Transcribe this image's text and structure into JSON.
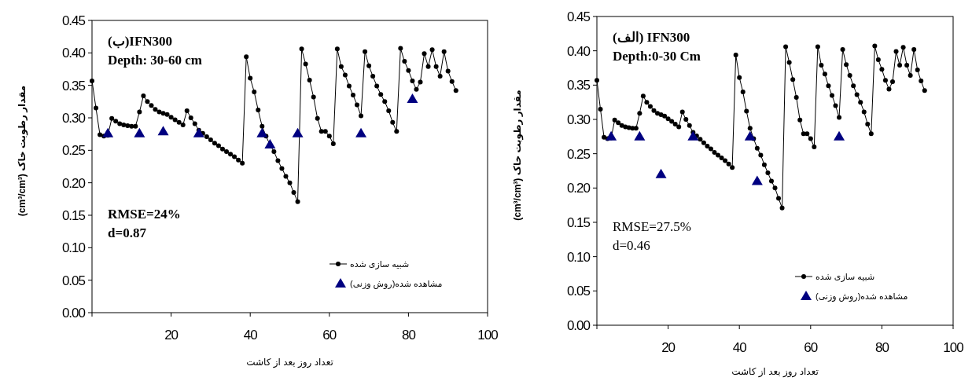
{
  "chart_data": [
    {
      "type": "line",
      "xlabel": "تعداد روز بعد از کاشت",
      "ylabel": "مقدار رطوبت خاک (cm³/cm³)",
      "annotations": [
        "(ب)IFN300",
        "Depth: 30-60 cm",
        "RMSE=24%",
        "d=0.87"
      ],
      "legend": "bottom right",
      "xlim": [
        0,
        100
      ],
      "xticks": [
        {
          "value": 0,
          "label": null
        },
        20,
        40,
        60,
        80,
        100
      ],
      "ylim": [
        0,
        0.45
      ],
      "yticks": [
        {
          "value": 0,
          "label": "0.00"
        },
        0.05,
        {
          "value": 0.1,
          "label": "0.10"
        },
        0.15,
        {
          "value": 0.2,
          "label": "0.20"
        },
        0.25,
        {
          "value": 0.3,
          "label": "0.30"
        },
        0.35,
        {
          "value": 0.4,
          "label": "0.40"
        },
        0.45
      ],
      "series": [
        {
          "name": "شبیه سازی شده",
          "type": "line",
          "marker": "circle",
          "color": "#000000",
          "x": [
            0,
            1,
            2,
            3,
            4,
            5,
            6,
            7,
            8,
            9,
            10,
            11,
            12,
            13,
            14,
            15,
            16,
            17,
            18,
            19,
            20,
            21,
            22,
            23,
            24,
            25,
            26,
            27,
            28,
            29,
            30,
            31,
            32,
            33,
            34,
            35,
            36,
            37,
            38,
            39,
            40,
            41,
            42,
            43,
            44,
            45,
            46,
            47,
            48,
            49,
            50,
            51,
            52,
            53,
            54,
            55,
            56,
            57,
            58,
            59,
            60,
            61,
            62,
            63,
            64,
            65,
            66,
            67,
            68,
            69,
            70,
            71,
            72,
            73,
            74,
            75,
            76,
            77,
            78,
            79,
            80,
            81,
            82,
            83,
            84,
            85,
            86,
            87,
            88,
            89,
            90,
            91,
            92
          ],
          "values": [
            0.357,
            0.315,
            0.274,
            0.272,
            0.273,
            0.299,
            0.295,
            0.291,
            0.289,
            0.288,
            0.287,
            0.287,
            0.309,
            0.334,
            0.325,
            0.319,
            0.313,
            0.309,
            0.307,
            0.305,
            0.301,
            0.297,
            0.293,
            0.289,
            0.311,
            0.3,
            0.291,
            0.281,
            0.276,
            0.271,
            0.266,
            0.261,
            0.257,
            0.252,
            0.248,
            0.244,
            0.24,
            0.235,
            0.23,
            0.394,
            0.361,
            0.34,
            0.312,
            0.287,
            0.272,
            0.258,
            0.248,
            0.234,
            0.222,
            0.21,
            0.2,
            0.185,
            0.171,
            0.406,
            0.383,
            0.358,
            0.332,
            0.299,
            0.279,
            0.279,
            0.272,
            0.26,
            0.406,
            0.379,
            0.366,
            0.349,
            0.335,
            0.32,
            0.303,
            0.402,
            0.38,
            0.364,
            0.349,
            0.336,
            0.325,
            0.311,
            0.293,
            0.279,
            0.407,
            0.387,
            0.373,
            0.357,
            0.344,
            0.355,
            0.399,
            0.379,
            0.405,
            0.379,
            0.364,
            0.402,
            0.372,
            0.356,
            0.342
          ]
        },
        {
          "name": "مشاهده شده(روش وزنی)",
          "type": "scatter",
          "marker": "triangle",
          "color": "#000080",
          "x": [
            4,
            12,
            18,
            27,
            43,
            45,
            52,
            68,
            81
          ],
          "values": [
            0.276,
            0.276,
            0.279,
            0.276,
            0.276,
            0.259,
            0.276,
            0.276,
            0.329
          ]
        }
      ]
    },
    {
      "type": "line",
      "xlabel": "تعداد روز بعد از کاشت",
      "ylabel": "مقدار رطوبت خاک (cm³/cm³)",
      "annotations": [
        "(الف) IFN300",
        "Depth:0-30 Cm",
        "RMSE=27.5%",
        "d=0.46"
      ],
      "legend": "bottom right",
      "xlim": [
        0,
        100
      ],
      "xticks": [
        {
          "value": 0,
          "label": null
        },
        20,
        40,
        60,
        80,
        100
      ],
      "ylim": [
        0,
        0.45
      ],
      "yticks": [
        {
          "value": 0,
          "label": "0.00"
        },
        0.05,
        {
          "value": 0.1,
          "label": "0.10"
        },
        0.15,
        {
          "value": 0.2,
          "label": "0.20"
        },
        0.25,
        {
          "value": 0.3,
          "label": "0.30"
        },
        0.35,
        {
          "value": 0.4,
          "label": "0.40"
        },
        0.45
      ],
      "series": [
        {
          "name": "شبیه سازی شده",
          "type": "line",
          "marker": "circle",
          "color": "#000000",
          "x": [
            0,
            1,
            2,
            3,
            4,
            5,
            6,
            7,
            8,
            9,
            10,
            11,
            12,
            13,
            14,
            15,
            16,
            17,
            18,
            19,
            20,
            21,
            22,
            23,
            24,
            25,
            26,
            27,
            28,
            29,
            30,
            31,
            32,
            33,
            34,
            35,
            36,
            37,
            38,
            39,
            40,
            41,
            42,
            43,
            44,
            45,
            46,
            47,
            48,
            49,
            50,
            51,
            52,
            53,
            54,
            55,
            56,
            57,
            58,
            59,
            60,
            61,
            62,
            63,
            64,
            65,
            66,
            67,
            68,
            69,
            70,
            71,
            72,
            73,
            74,
            75,
            76,
            77,
            78,
            79,
            80,
            81,
            82,
            83,
            84,
            85,
            86,
            87,
            88,
            89,
            90,
            91,
            92
          ],
          "values": [
            0.357,
            0.315,
            0.274,
            0.272,
            0.273,
            0.299,
            0.295,
            0.291,
            0.289,
            0.288,
            0.287,
            0.287,
            0.309,
            0.334,
            0.325,
            0.319,
            0.313,
            0.309,
            0.307,
            0.305,
            0.301,
            0.297,
            0.293,
            0.289,
            0.311,
            0.3,
            0.291,
            0.281,
            0.276,
            0.271,
            0.266,
            0.261,
            0.257,
            0.252,
            0.248,
            0.244,
            0.24,
            0.235,
            0.23,
            0.394,
            0.361,
            0.34,
            0.312,
            0.287,
            0.272,
            0.258,
            0.248,
            0.234,
            0.222,
            0.21,
            0.2,
            0.185,
            0.171,
            0.406,
            0.383,
            0.358,
            0.332,
            0.299,
            0.279,
            0.279,
            0.272,
            0.26,
            0.406,
            0.379,
            0.366,
            0.349,
            0.335,
            0.32,
            0.303,
            0.402,
            0.38,
            0.364,
            0.349,
            0.336,
            0.325,
            0.311,
            0.293,
            0.279,
            0.407,
            0.387,
            0.373,
            0.357,
            0.344,
            0.355,
            0.399,
            0.379,
            0.405,
            0.379,
            0.364,
            0.402,
            0.372,
            0.356,
            0.342
          ]
        },
        {
          "name": "مشاهده شده(روش وزنی)",
          "type": "scatter",
          "marker": "triangle",
          "color": "#000080",
          "x": [
            4,
            12,
            18,
            27,
            43,
            45,
            68
          ],
          "values": [
            0.275,
            0.275,
            0.22,
            0.275,
            0.275,
            0.21,
            0.275
          ]
        }
      ]
    }
  ]
}
